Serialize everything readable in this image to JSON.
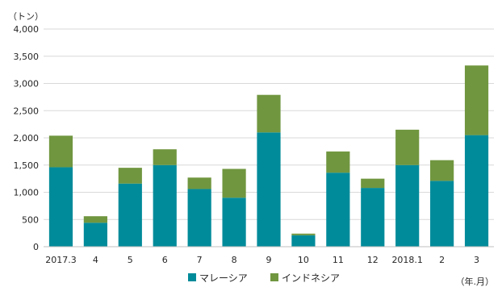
{
  "colors": {
    "malaysia": "#008B9A",
    "indonesia": "#70963F",
    "grid": "#d9d9d9",
    "axis": "#bfbfbf"
  },
  "chart_data": {
    "type": "bar",
    "stacked": true,
    "y_unit_label": "（トン）",
    "x_unit_label": "（年.月）",
    "ylim": [
      0,
      4000
    ],
    "yticks": [
      "4,000",
      "3,500",
      "3,000",
      "2,500",
      "2,000",
      "1,500",
      "1,000",
      "500",
      "0"
    ],
    "ytick_values": [
      4000,
      3500,
      3000,
      2500,
      2000,
      1500,
      1000,
      500,
      0
    ],
    "grid": true,
    "legend_position": "bottom",
    "categories": [
      "2017.3",
      "4",
      "5",
      "6",
      "7",
      "8",
      "9",
      "10",
      "11",
      "12",
      "2018.1",
      "2",
      "3"
    ],
    "series": [
      {
        "name": "マレーシア",
        "color": "#008B9A",
        "values": [
          1460,
          440,
          1160,
          1500,
          1060,
          900,
          2100,
          210,
          1360,
          1080,
          1500,
          1210,
          2050
        ]
      },
      {
        "name": "インドネシア",
        "color": "#70963F",
        "values": [
          580,
          120,
          290,
          290,
          210,
          530,
          690,
          30,
          390,
          170,
          650,
          380,
          1280
        ]
      }
    ]
  }
}
